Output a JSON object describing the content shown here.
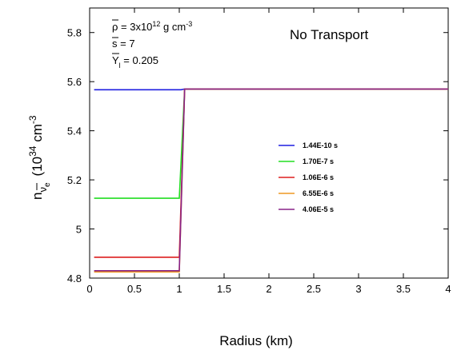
{
  "chart_data": {
    "type": "line",
    "title": "No Transport",
    "xlabel": "Radius (km)",
    "ylabel": {
      "base": "n",
      "sub_bar": "ν",
      "sub_sub": "e",
      "paren": "(10",
      "exp": "34",
      "unit": " cm",
      "unit_exp": "-3"
    },
    "xlim": [
      0,
      4
    ],
    "ylim": [
      4.8,
      5.9
    ],
    "xticks": [
      "0",
      "0.5",
      "1",
      "1.5",
      "2",
      "2.5",
      "3",
      "3.5",
      "4"
    ],
    "yticks": [
      "4.8",
      "5",
      "5.2",
      "5.4",
      "5.6",
      "5.8"
    ],
    "grid": false,
    "legend_position": "center-right",
    "annotations": {
      "rho": {
        "sym": "ρ",
        "mid": " = 3x10",
        "exp": "12",
        "unit": " g cm",
        "unit_exp": "-3"
      },
      "s": {
        "sym": "s",
        "rest": " = 7"
      },
      "y": {
        "sym": "Y",
        "sub": "l",
        "rest": " = 0.205"
      }
    },
    "series": [
      {
        "name": "1.44E-10 s",
        "color": "#1f1fe0",
        "x": [
          0.05,
          1.0,
          1.02,
          1.06,
          4.0
        ],
        "y": [
          5.567,
          5.567,
          5.567,
          5.57,
          5.57
        ]
      },
      {
        "name": "1.70E-7 s",
        "color": "#22dd22",
        "x": [
          0.05,
          1.0,
          1.06,
          4.0
        ],
        "y": [
          5.125,
          5.125,
          5.57,
          5.57
        ]
      },
      {
        "name": "1.06E-6 s",
        "color": "#dd1f1f",
        "x": [
          0.05,
          1.0,
          1.06,
          4.0
        ],
        "y": [
          4.885,
          4.885,
          5.57,
          5.57
        ]
      },
      {
        "name": "6.55E-6 s",
        "color": "#ee9922",
        "x": [
          0.05,
          1.0,
          1.06,
          4.0
        ],
        "y": [
          4.825,
          4.825,
          5.57,
          5.57
        ]
      },
      {
        "name": "4.06E-5 s",
        "color": "#882288",
        "x": [
          0.05,
          1.0,
          1.06,
          4.0
        ],
        "y": [
          4.83,
          4.83,
          5.57,
          5.57
        ]
      }
    ]
  }
}
